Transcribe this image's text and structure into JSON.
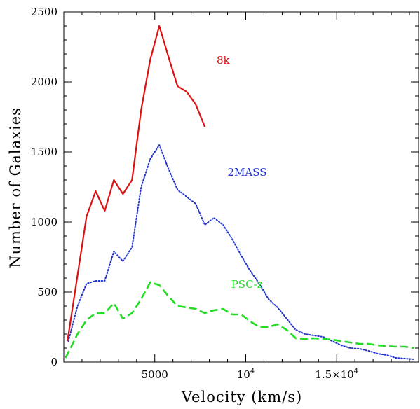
{
  "chart_data": {
    "type": "line",
    "title": "",
    "xlabel": "Velocity (km/s)",
    "ylabel": "Number of Galaxies",
    "xlim": [
      0,
      19500
    ],
    "ylim": [
      0,
      2500
    ],
    "x_tick_values": [
      5000,
      10000,
      15000
    ],
    "x_tick_labels": [
      "5000",
      "10^4",
      "1.5×10^4"
    ],
    "y_tick_values": [
      0,
      500,
      1000,
      1500,
      2000,
      2500
    ],
    "y_tick_labels": [
      "0",
      "500",
      "1000",
      "1500",
      "2000",
      "2500"
    ],
    "grid": false,
    "legend": "inline labels",
    "series": [
      {
        "name": "8k",
        "color": "#dd1111",
        "dash": "solid",
        "x": [
          200,
          1250,
          1750,
          2250,
          2750,
          3250,
          3750,
          4250,
          4750,
          5250,
          5750,
          6250,
          6750,
          7250,
          7750
        ],
        "y": [
          150,
          1040,
          1220,
          1080,
          1300,
          1200,
          1300,
          1800,
          2160,
          2400,
          2180,
          1970,
          1930,
          1840,
          1680
        ]
      },
      {
        "name": "2MASS",
        "color": "#2233cc",
        "dash": "dotted",
        "x": [
          250,
          750,
          1250,
          1750,
          2250,
          2750,
          3250,
          3750,
          4250,
          4750,
          5250,
          5750,
          6250,
          6750,
          7250,
          7750,
          8250,
          8750,
          9250,
          9750,
          10250,
          10750,
          11250,
          11750,
          12250,
          12750,
          13250,
          13750,
          14250,
          14750,
          15250,
          15750,
          16250,
          16750,
          17250,
          17750,
          18250,
          18750,
          19250
        ],
        "y": [
          150,
          400,
          560,
          580,
          580,
          790,
          720,
          820,
          1250,
          1450,
          1550,
          1380,
          1230,
          1180,
          1130,
          980,
          1030,
          980,
          880,
          760,
          650,
          560,
          450,
          390,
          310,
          230,
          200,
          190,
          180,
          150,
          120,
          100,
          95,
          80,
          60,
          50,
          30,
          25,
          20
        ]
      },
      {
        "name": "PSC-z",
        "color": "#22dd22",
        "dash": "dashed",
        "x": [
          100,
          750,
          1250,
          1750,
          2250,
          2750,
          3250,
          3750,
          4250,
          4750,
          5250,
          5750,
          6250,
          6750,
          7250,
          7750,
          8250,
          8750,
          9250,
          9750,
          10250,
          10750,
          11250,
          11750,
          12250,
          12750,
          13250,
          13750,
          14250,
          14750,
          15250,
          15750,
          16250,
          16750,
          17250,
          17750,
          18250,
          18750,
          19250
        ],
        "y": [
          30,
          200,
          300,
          350,
          350,
          420,
          310,
          350,
          450,
          570,
          550,
          470,
          400,
          390,
          380,
          350,
          370,
          380,
          340,
          340,
          290,
          250,
          250,
          270,
          230,
          170,
          165,
          170,
          165,
          160,
          150,
          140,
          130,
          130,
          120,
          115,
          110,
          110,
          100
        ]
      }
    ],
    "annotations": [
      {
        "text": "8k",
        "x": 8400,
        "y": 2130,
        "series": "8k"
      },
      {
        "text": "2MASS",
        "x": 9000,
        "y": 1330,
        "series": "2MASS"
      },
      {
        "text": "PSC-z",
        "x": 9200,
        "y": 530,
        "series": "PSC-z"
      }
    ]
  }
}
